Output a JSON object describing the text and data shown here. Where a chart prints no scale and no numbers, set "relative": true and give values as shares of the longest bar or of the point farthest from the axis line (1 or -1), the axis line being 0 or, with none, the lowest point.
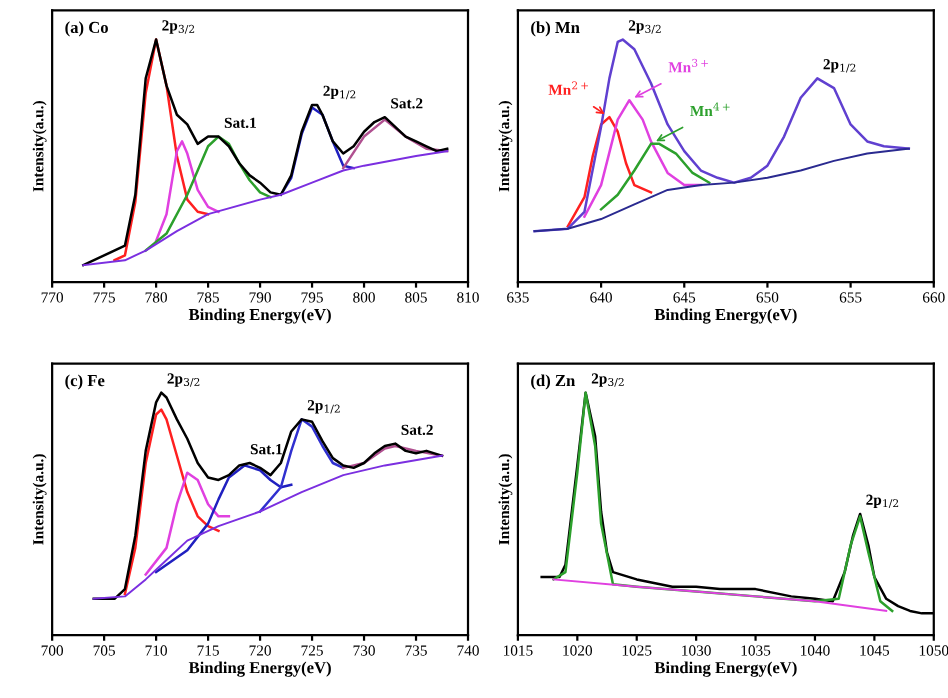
{
  "chart_data": [
    {
      "type": "line",
      "relative": true,
      "xlabel": "Binding Energy(eV)",
      "ylabel": "Intensity(a.u.)",
      "xlim": [
        770,
        810
      ],
      "xticks": [
        770,
        775,
        780,
        785,
        790,
        795,
        800,
        805,
        810
      ],
      "grid": false,
      "legend": false,
      "marker": "none",
      "line_style": "solid",
      "annotations": [
        "(a) Co",
        {
          "text": "2p$_{3/2}$",
          "x": 780,
          "y": 1.0
        },
        {
          "text": "Sat.1",
          "x": 786,
          "y": 0.6
        },
        {
          "text": "2p$_{1/2}$",
          "x": 795.5,
          "y": 0.73
        },
        {
          "text": "Sat.2",
          "x": 802,
          "y": 0.68
        }
      ],
      "series": [
        {
          "color": "#7b2fe0",
          "x": [
            773,
            777,
            779,
            782,
            785,
            790,
            792,
            795,
            798,
            800,
            805,
            808
          ],
          "values": [
            0.07,
            0.09,
            0.13,
            0.21,
            0.28,
            0.34,
            0.36,
            0.41,
            0.46,
            0.48,
            0.52,
            0.54
          ]
        },
        {
          "color": "#ff2020",
          "x": [
            776,
            777,
            778,
            779,
            780,
            781,
            782,
            783,
            784,
            785
          ],
          "values": [
            0.09,
            0.11,
            0.33,
            0.78,
            1.0,
            0.81,
            0.52,
            0.34,
            0.29,
            0.28
          ]
        },
        {
          "color": "#e040e0",
          "x": [
            780,
            781,
            782,
            782.5,
            783,
            784,
            785,
            786
          ],
          "values": [
            0.17,
            0.28,
            0.54,
            0.58,
            0.53,
            0.38,
            0.31,
            0.29
          ]
        },
        {
          "color": "#2ca02c",
          "x": [
            779,
            781,
            783,
            784,
            785,
            786,
            787,
            788,
            789,
            790,
            791
          ],
          "values": [
            0.13,
            0.2,
            0.36,
            0.46,
            0.56,
            0.6,
            0.57,
            0.49,
            0.42,
            0.37,
            0.35
          ]
        },
        {
          "color": "#2020c0",
          "x": [
            792,
            793,
            794,
            795,
            796,
            797,
            798,
            799
          ],
          "values": [
            0.36,
            0.43,
            0.61,
            0.72,
            0.69,
            0.58,
            0.48,
            0.47
          ]
        },
        {
          "color": "#b05090",
          "x": [
            798,
            800,
            802,
            804,
            806,
            808
          ],
          "values": [
            0.47,
            0.6,
            0.67,
            0.6,
            0.55,
            0.54
          ]
        },
        {
          "color": "#000000",
          "x": [
            773,
            775,
            777,
            778,
            779,
            780,
            781,
            782,
            783,
            784,
            785,
            786,
            787,
            788,
            789,
            790,
            791,
            792,
            793,
            794,
            795,
            795.5,
            796,
            797,
            798,
            799,
            800,
            801,
            802,
            803,
            804,
            805,
            806,
            807,
            808
          ],
          "values": [
            0.07,
            0.11,
            0.15,
            0.36,
            0.84,
            1.0,
            0.81,
            0.69,
            0.65,
            0.57,
            0.6,
            0.6,
            0.56,
            0.49,
            0.44,
            0.41,
            0.37,
            0.36,
            0.44,
            0.62,
            0.73,
            0.73,
            0.69,
            0.58,
            0.53,
            0.56,
            0.62,
            0.66,
            0.68,
            0.64,
            0.6,
            0.58,
            0.56,
            0.54,
            0.55
          ]
        }
      ]
    },
    {
      "type": "line",
      "relative": true,
      "xlabel": "Binding Energy(eV)",
      "ylabel": "Intensity(a.u.)",
      "xlim": [
        635,
        660
      ],
      "xticks": [
        635,
        640,
        645,
        650,
        655,
        660
      ],
      "grid": false,
      "legend": false,
      "marker": "none",
      "line_style": "solid",
      "annotations": [
        "(b) Mn",
        {
          "text": "2p$_{3/2}$",
          "x": 641.3,
          "y": 1.0
        },
        {
          "text": "2p$_{1/2}$",
          "x": 653,
          "y": 0.84
        }
      ],
      "series": [
        {
          "color": "#2a2a90",
          "x": [
            636,
            638,
            640,
            642,
            644,
            646,
            648,
            650,
            652,
            654,
            656,
            658.5
          ],
          "values": [
            0.21,
            0.22,
            0.26,
            0.32,
            0.38,
            0.4,
            0.41,
            0.43,
            0.46,
            0.5,
            0.53,
            0.55
          ]
        },
        {
          "name": "Mn$^{2+}$",
          "color": "#ff2020",
          "x": [
            638,
            639,
            639.5,
            640,
            640.5,
            641,
            641.5,
            642,
            643
          ],
          "values": [
            0.23,
            0.35,
            0.52,
            0.65,
            0.68,
            0.62,
            0.49,
            0.4,
            0.37
          ]
        },
        {
          "name": "Mn$^{3+}$",
          "color": "#e040e0",
          "x": [
            639,
            640,
            641,
            641.7,
            642.5,
            643,
            644,
            645,
            646
          ],
          "values": [
            0.27,
            0.4,
            0.67,
            0.75,
            0.67,
            0.58,
            0.45,
            0.4,
            0.4
          ]
        },
        {
          "name": "Mn$^{4+}$",
          "color": "#2ca02c",
          "x": [
            640,
            641,
            642,
            643,
            643.5,
            644.5,
            645.5,
            646.5
          ],
          "values": [
            0.3,
            0.36,
            0.46,
            0.57,
            0.57,
            0.53,
            0.45,
            0.41
          ]
        },
        {
          "color": "#6040d0",
          "x": [
            636,
            638,
            639,
            640,
            640.5,
            641,
            641.3,
            642,
            643,
            644,
            645,
            646,
            647,
            648,
            649,
            650,
            651,
            652,
            653,
            654,
            655,
            656,
            657,
            658.5
          ],
          "values": [
            0.21,
            0.22,
            0.29,
            0.64,
            0.84,
            0.99,
            1.0,
            0.96,
            0.82,
            0.65,
            0.54,
            0.46,
            0.43,
            0.41,
            0.43,
            0.48,
            0.6,
            0.76,
            0.84,
            0.8,
            0.65,
            0.58,
            0.56,
            0.55
          ]
        }
      ]
    },
    {
      "type": "line",
      "relative": true,
      "xlabel": "Binding Energy(eV)",
      "ylabel": "Intensity(a.u.)",
      "xlim": [
        700,
        740
      ],
      "xticks": [
        700,
        705,
        710,
        715,
        720,
        725,
        730,
        735,
        740
      ],
      "grid": false,
      "legend": false,
      "marker": "none",
      "line_style": "solid",
      "annotations": [
        "(c) Fe",
        {
          "text": "2p$_{3/2}$",
          "x": 710.5,
          "y": 1.0
        },
        {
          "text": "Sat.1",
          "x": 718.5,
          "y": 0.71
        },
        {
          "text": "2p$_{1/2}$",
          "x": 724,
          "y": 0.89
        },
        {
          "text": "Sat.2",
          "x": 733,
          "y": 0.79
        }
      ],
      "series": [
        {
          "color": "#7b2fe0",
          "x": [
            704,
            707,
            709,
            711,
            713,
            716,
            720,
            724,
            728,
            732,
            737.5
          ],
          "values": [
            0.15,
            0.16,
            0.23,
            0.31,
            0.39,
            0.45,
            0.51,
            0.59,
            0.66,
            0.7,
            0.74
          ]
        },
        {
          "color": "#ff2020",
          "x": [
            707,
            708,
            709,
            710,
            710.5,
            711,
            712,
            713,
            714,
            715,
            716
          ],
          "values": [
            0.17,
            0.36,
            0.71,
            0.91,
            0.93,
            0.89,
            0.74,
            0.59,
            0.49,
            0.45,
            0.43
          ]
        },
        {
          "color": "#e040e0",
          "x": [
            709,
            711,
            712,
            713,
            714,
            715,
            716,
            717
          ],
          "values": [
            0.25,
            0.36,
            0.54,
            0.67,
            0.64,
            0.54,
            0.49,
            0.49
          ]
        },
        {
          "color": "#2020c0",
          "x": [
            710,
            713,
            715,
            716,
            717,
            718.5,
            720,
            721,
            722,
            723
          ],
          "values": [
            0.26,
            0.35,
            0.46,
            0.56,
            0.65,
            0.7,
            0.68,
            0.64,
            0.61,
            0.62
          ]
        },
        {
          "color": "#3030d0",
          "x": [
            720,
            722,
            723,
            724,
            725,
            726,
            727,
            728
          ],
          "values": [
            0.51,
            0.61,
            0.76,
            0.89,
            0.86,
            0.78,
            0.71,
            0.69
          ]
        },
        {
          "color": "#b05090",
          "x": [
            728,
            730,
            732,
            733,
            735,
            737.5
          ],
          "values": [
            0.69,
            0.71,
            0.77,
            0.78,
            0.76,
            0.74
          ]
        },
        {
          "color": "#000000",
          "x": [
            704,
            706,
            707,
            708,
            709,
            710,
            710.5,
            711,
            712,
            713,
            714,
            715,
            716,
            717,
            718,
            719,
            720,
            721,
            722,
            723,
            724,
            725,
            726,
            727,
            728,
            729,
            730,
            731,
            732,
            733,
            734,
            735,
            736,
            737.5
          ],
          "values": [
            0.15,
            0.15,
            0.19,
            0.41,
            0.76,
            0.96,
            1.0,
            0.98,
            0.89,
            0.81,
            0.71,
            0.65,
            0.64,
            0.66,
            0.7,
            0.71,
            0.69,
            0.66,
            0.71,
            0.84,
            0.89,
            0.88,
            0.8,
            0.73,
            0.7,
            0.69,
            0.71,
            0.75,
            0.78,
            0.79,
            0.76,
            0.75,
            0.76,
            0.74
          ]
        }
      ]
    },
    {
      "type": "line",
      "relative": true,
      "xlabel": "Binding Energy(eV)",
      "ylabel": "Intensity(a.u.)",
      "xlim": [
        1015,
        1050
      ],
      "xticks": [
        1015,
        1020,
        1025,
        1030,
        1035,
        1040,
        1045,
        1050
      ],
      "grid": false,
      "legend": false,
      "marker": "none",
      "line_style": "solid",
      "annotations": [
        "(d) Zn",
        {
          "text": "2p$_{3/2}$",
          "x": 1020.7,
          "y": 1.0
        },
        {
          "text": "2p$_{1/2}$",
          "x": 1043.8,
          "y": 0.5
        }
      ],
      "series": [
        {
          "color": "#e040e0",
          "x": [
            1018,
            1025,
            1030,
            1035,
            1040,
            1046
          ],
          "values": [
            0.23,
            0.2,
            0.18,
            0.16,
            0.14,
            0.1
          ]
        },
        {
          "color": "#000000",
          "x": [
            1017,
            1018.5,
            1019,
            1020,
            1020.7,
            1021.5,
            1022,
            1022.5,
            1023,
            1025,
            1028,
            1030,
            1032,
            1035,
            1038,
            1040,
            1041.5,
            1042.5,
            1043.2,
            1043.8,
            1044.5,
            1045,
            1046,
            1047,
            1048,
            1049,
            1050
          ],
          "values": [
            0.24,
            0.24,
            0.29,
            0.7,
            1.0,
            0.82,
            0.51,
            0.34,
            0.26,
            0.23,
            0.2,
            0.2,
            0.19,
            0.19,
            0.16,
            0.15,
            0.14,
            0.26,
            0.41,
            0.5,
            0.37,
            0.24,
            0.15,
            0.12,
            0.1,
            0.09,
            0.09
          ]
        },
        {
          "color": "#2ca02c",
          "x": [
            1018,
            1019,
            1020,
            1020.7,
            1021.5,
            1022,
            1023,
            1025,
            1030,
            1035,
            1040,
            1042,
            1043,
            1043.8,
            1044.5,
            1045.5,
            1046.5
          ],
          "values": [
            0.23,
            0.26,
            0.67,
            1.0,
            0.78,
            0.46,
            0.21,
            0.2,
            0.18,
            0.16,
            0.14,
            0.15,
            0.37,
            0.49,
            0.34,
            0.14,
            0.1
          ]
        }
      ]
    }
  ]
}
